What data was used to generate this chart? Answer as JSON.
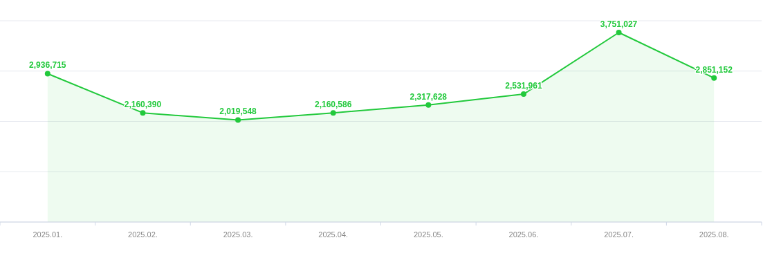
{
  "chart_data": {
    "type": "area",
    "categories": [
      "2025.01.",
      "2025.02.",
      "2025.03.",
      "2025.04.",
      "2025.05.",
      "2025.06.",
      "2025.07.",
      "2025.08."
    ],
    "series": [
      {
        "color": "#22c93c",
        "values": [
          2936715,
          2160390,
          2019548,
          2160586,
          2317628,
          2531961,
          3751027,
          2851152
        ],
        "value_labels": [
          "2,936,715",
          "2,160,390",
          "2,019,548",
          "2,160,586",
          "2,317,628",
          "2,531,961",
          "3,751,027",
          "2,851,152"
        ]
      }
    ],
    "grid": "y",
    "tick_labels": "x",
    "marker": "circle"
  }
}
